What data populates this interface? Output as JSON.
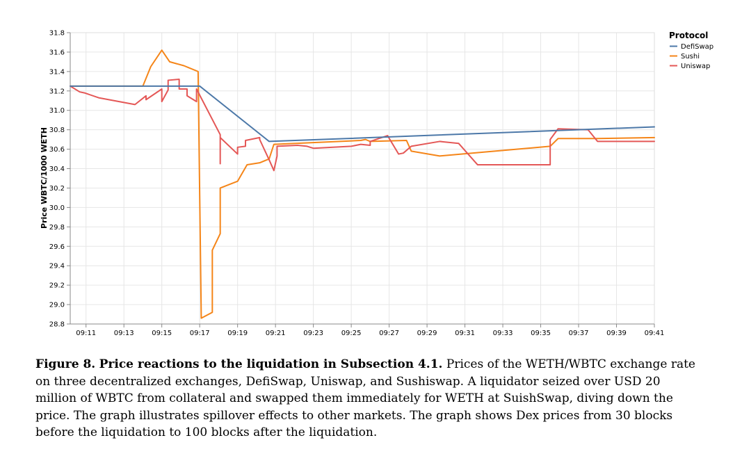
{
  "chart_data": {
    "type": "line",
    "ylabel": "Price WBTC/1000 WETH",
    "xlabel": "",
    "ylim": [
      28.8,
      31.8
    ],
    "xlim": [
      "09:10:10",
      "09:41:00"
    ],
    "y_ticks": [
      "28.8",
      "29.0",
      "29.2",
      "29.4",
      "29.6",
      "29.8",
      "30.0",
      "30.2",
      "30.4",
      "30.6",
      "30.8",
      "31.0",
      "31.2",
      "31.4",
      "31.6",
      "31.8"
    ],
    "x_ticks": [
      "09:11",
      "09:13",
      "09:15",
      "09:17",
      "09:19",
      "09:21",
      "09:23",
      "09:25",
      "09:27",
      "09:29",
      "09:31",
      "09:33",
      "09:35",
      "09:37",
      "09:39",
      "09:41"
    ],
    "grid": true,
    "legend": {
      "title": "Protocol",
      "placement": "top-right"
    },
    "series": [
      {
        "name": "DefiSwap",
        "color": "#4c78a8",
        "points": [
          [
            "09:10:10",
            31.25
          ],
          [
            "09:12:00",
            31.25
          ],
          [
            "09:17:00",
            31.25
          ],
          [
            "09:20:40",
            30.68
          ],
          [
            "09:41:00",
            30.83
          ]
        ]
      },
      {
        "name": "Sushi",
        "color": "#f58518",
        "points": [
          [
            "09:10:10",
            31.25
          ],
          [
            "09:14:00",
            31.25
          ],
          [
            "09:14:25",
            31.45
          ],
          [
            "09:15:00",
            31.62
          ],
          [
            "09:15:25",
            31.5
          ],
          [
            "09:16:10",
            31.46
          ],
          [
            "09:16:25",
            31.44
          ],
          [
            "09:16:55",
            31.4
          ],
          [
            "09:17:05",
            28.86
          ],
          [
            "09:17:40",
            28.92
          ],
          [
            "09:17:40",
            29.56
          ],
          [
            "09:18:05",
            29.73
          ],
          [
            "09:18:05",
            30.2
          ],
          [
            "09:19:00",
            30.27
          ],
          [
            "09:19:30",
            30.44
          ],
          [
            "09:20:10",
            30.46
          ],
          [
            "09:20:40",
            30.5
          ],
          [
            "09:20:55",
            30.65
          ],
          [
            "09:25:30",
            30.69
          ],
          [
            "09:25:45",
            30.7
          ],
          [
            "09:26:00",
            30.68
          ],
          [
            "09:27:55",
            30.69
          ],
          [
            "09:28:10",
            30.58
          ],
          [
            "09:29:40",
            30.53
          ],
          [
            "09:32:00",
            30.57
          ],
          [
            "09:35:30",
            30.63
          ],
          [
            "09:35:55",
            30.71
          ],
          [
            "09:38:00",
            30.71
          ],
          [
            "09:41:00",
            30.72
          ]
        ]
      },
      {
        "name": "Uniswap",
        "color": "#e45756",
        "points": [
          [
            "09:10:10",
            31.25
          ],
          [
            "09:10:40",
            31.19
          ],
          [
            "09:10:55",
            31.18
          ],
          [
            "09:11:40",
            31.13
          ],
          [
            "09:13:35",
            31.06
          ],
          [
            "09:14:10",
            31.15
          ],
          [
            "09:14:10",
            31.11
          ],
          [
            "09:15:00",
            31.22
          ],
          [
            "09:15:00",
            31.09
          ],
          [
            "09:15:20",
            31.21
          ],
          [
            "09:15:20",
            31.31
          ],
          [
            "09:15:55",
            31.32
          ],
          [
            "09:15:55",
            31.22
          ],
          [
            "09:16:20",
            31.22
          ],
          [
            "09:16:20",
            31.15
          ],
          [
            "09:16:50",
            31.09
          ],
          [
            "09:16:50",
            31.22
          ],
          [
            "09:18:05",
            30.75
          ],
          [
            "09:18:05",
            30.45
          ],
          [
            "09:18:05",
            30.72
          ],
          [
            "09:19:00",
            30.55
          ],
          [
            "09:19:00",
            30.62
          ],
          [
            "09:19:25",
            30.63
          ],
          [
            "09:19:25",
            30.69
          ],
          [
            "09:20:10",
            30.72
          ],
          [
            "09:20:10",
            30.7
          ],
          [
            "09:20:40",
            30.49
          ],
          [
            "09:20:55",
            30.38
          ],
          [
            "09:21:05",
            30.53
          ],
          [
            "09:21:05",
            30.63
          ],
          [
            "09:22:10",
            30.64
          ],
          [
            "09:22:40",
            30.63
          ],
          [
            "09:23:00",
            30.61
          ],
          [
            "09:25:00",
            30.63
          ],
          [
            "09:25:30",
            30.65
          ],
          [
            "09:26:00",
            30.64
          ],
          [
            "09:26:00",
            30.68
          ],
          [
            "09:26:55",
            30.74
          ],
          [
            "09:27:30",
            30.55
          ],
          [
            "09:27:45",
            30.56
          ],
          [
            "09:28:10",
            30.63
          ],
          [
            "09:29:40",
            30.68
          ],
          [
            "09:30:40",
            30.66
          ],
          [
            "09:31:40",
            30.44
          ],
          [
            "09:35:30",
            30.44
          ],
          [
            "09:35:30",
            30.7
          ],
          [
            "09:35:55",
            30.81
          ],
          [
            "09:37:30",
            30.8
          ],
          [
            "09:38:00",
            30.68
          ],
          [
            "09:39:00",
            30.68
          ],
          [
            "09:41:00",
            30.68
          ]
        ]
      }
    ]
  },
  "caption": {
    "label": "Figure 8.",
    "title": "Price reactions to the liquidation in Subsection 4.1.",
    "body": "Prices of the WETH/WBTC exchange rate on three decentralized exchanges, DefiSwap, Uniswap, and Sushiswap. A liquidator seized over USD 20 million of WBTC from collateral and swapped them immediately for WETH at SuishSwap, diving down the price. The graph illustrates spillover effects to other markets. The graph shows Dex prices from 30 blocks before the liquidation to 100 blocks after the liquidation."
  }
}
